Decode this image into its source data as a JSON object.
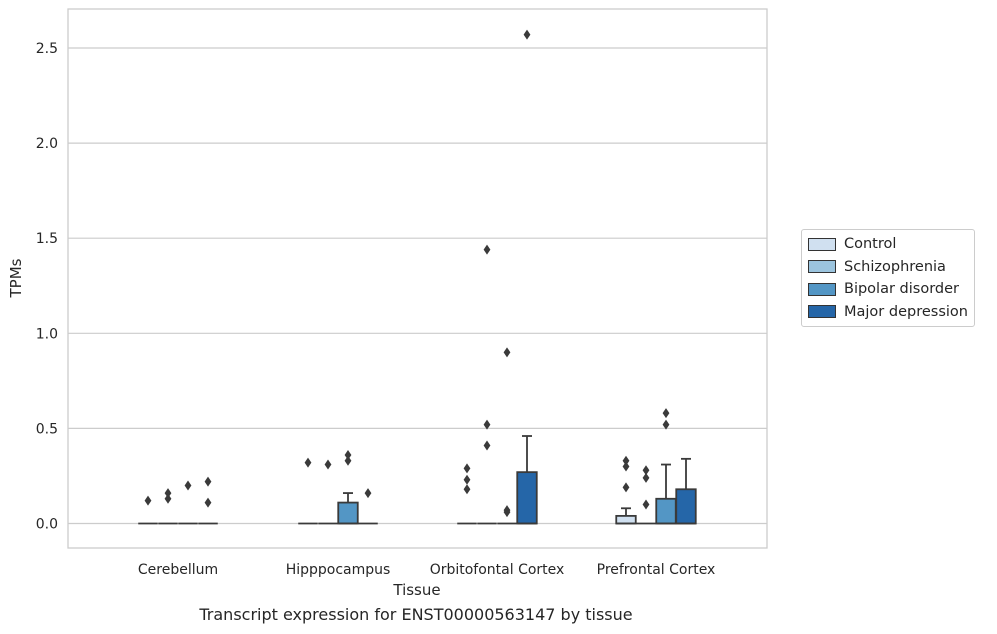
{
  "caption": "Transcript expression for ENST00000563147 by tissue",
  "chart_data": {
    "type": "box",
    "xlabel": "Tissue",
    "ylabel": "TPMs",
    "ylim": [
      -0.125,
      2.7
    ],
    "yticks": [
      0.0,
      0.5,
      1.0,
      1.5,
      2.0,
      2.5
    ],
    "ytick_labels": [
      "0.0",
      "0.5",
      "1.0",
      "1.5",
      "2.0",
      "2.5"
    ],
    "categories": [
      "Cerebellum",
      "Hipppocampus",
      "Orbitofontal Cortex",
      "Prefrontal Cortex"
    ],
    "grid": "horizontal",
    "legend_position": "right",
    "series": [
      {
        "name": "Control",
        "color": "#d0e0f0",
        "boxes": [
          {
            "q1": 0,
            "median": 0,
            "q3": 0,
            "whisker_low": 0,
            "whisker_high": 0,
            "outliers": [
              0.12
            ]
          },
          {
            "q1": 0,
            "median": 0,
            "q3": 0,
            "whisker_low": 0,
            "whisker_high": 0,
            "outliers": [
              0.32
            ]
          },
          {
            "q1": 0,
            "median": 0,
            "q3": 0,
            "whisker_low": 0,
            "whisker_high": 0,
            "outliers": [
              0.18,
              0.23,
              0.29
            ]
          },
          {
            "q1": 0,
            "median": 0,
            "q3": 0.04,
            "whisker_low": 0,
            "whisker_high": 0.08,
            "outliers": [
              0.19,
              0.3,
              0.33
            ]
          }
        ]
      },
      {
        "name": "Schizophrenia",
        "color": "#9bc4de",
        "boxes": [
          {
            "q1": 0,
            "median": 0,
            "q3": 0,
            "whisker_low": 0,
            "whisker_high": 0,
            "outliers": [
              0.13,
              0.16
            ]
          },
          {
            "q1": 0,
            "median": 0,
            "q3": 0,
            "whisker_low": 0,
            "whisker_high": 0,
            "outliers": [
              0.31
            ]
          },
          {
            "q1": 0,
            "median": 0,
            "q3": 0,
            "whisker_low": 0,
            "whisker_high": 0,
            "outliers": [
              0.41,
              0.52,
              1.44
            ]
          },
          {
            "q1": 0,
            "median": 0,
            "q3": 0,
            "whisker_low": 0,
            "whisker_high": 0,
            "outliers": [
              0.1,
              0.24,
              0.28
            ]
          }
        ]
      },
      {
        "name": "Bipolar disorder",
        "color": "#5396c5",
        "boxes": [
          {
            "q1": 0,
            "median": 0,
            "q3": 0,
            "whisker_low": 0,
            "whisker_high": 0,
            "outliers": [
              0.2
            ]
          },
          {
            "q1": 0,
            "median": 0,
            "q3": 0.11,
            "whisker_low": 0,
            "whisker_high": 0.16,
            "outliers": [
              0.33,
              0.36
            ]
          },
          {
            "q1": 0,
            "median": 0,
            "q3": 0,
            "whisker_low": 0,
            "whisker_high": 0,
            "outliers": [
              0.06,
              0.07,
              0.9
            ]
          },
          {
            "q1": 0,
            "median": 0,
            "q3": 0.13,
            "whisker_low": 0,
            "whisker_high": 0.31,
            "outliers": [
              0.52,
              0.58
            ]
          }
        ]
      },
      {
        "name": "Major depression",
        "color": "#2566a8",
        "boxes": [
          {
            "q1": 0,
            "median": 0,
            "q3": 0,
            "whisker_low": 0,
            "whisker_high": 0,
            "outliers": [
              0.11,
              0.22
            ]
          },
          {
            "q1": 0,
            "median": 0,
            "q3": 0,
            "whisker_low": 0,
            "whisker_high": 0,
            "outliers": [
              0.16
            ]
          },
          {
            "q1": 0,
            "median": 0,
            "q3": 0.27,
            "whisker_low": 0,
            "whisker_high": 0.46,
            "outliers": [
              2.57
            ]
          },
          {
            "q1": 0,
            "median": 0,
            "q3": 0.18,
            "whisker_low": 0,
            "whisker_high": 0.34,
            "outliers": []
          }
        ]
      }
    ]
  }
}
